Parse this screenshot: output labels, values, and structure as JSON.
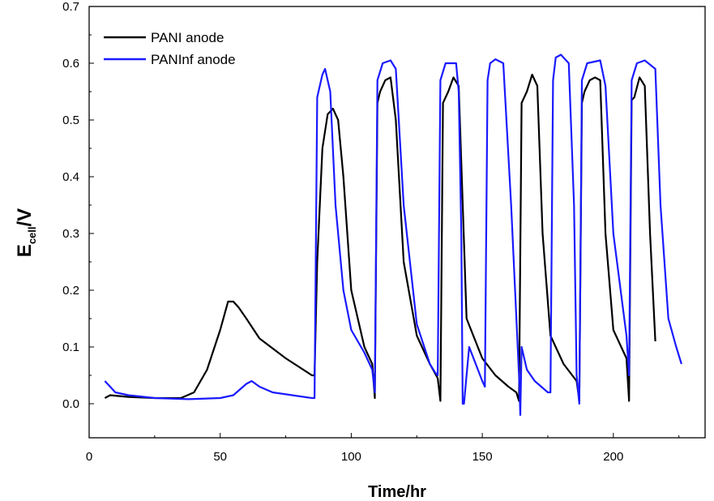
{
  "chart_data": {
    "type": "line",
    "xlabel": "Time/hr",
    "ylabel_main": "E",
    "ylabel_sub": "cell",
    "ylabel_tail": "/V",
    "xlim": [
      0,
      235
    ],
    "ylim": [
      -0.06,
      0.7
    ],
    "xticks": [
      0,
      50,
      100,
      150,
      200
    ],
    "yticks": [
      "0.0",
      "0.1",
      "0.2",
      "0.3",
      "0.4",
      "0.5",
      "0.6",
      "0.7"
    ],
    "legend_placement": "top-left",
    "series": [
      {
        "name": "PANI anode",
        "color": "#000000",
        "x": [
          6,
          8,
          15,
          25,
          35,
          40,
          45,
          50,
          53,
          55,
          57,
          60,
          65,
          75,
          85,
          86,
          87,
          89,
          91,
          93,
          95,
          97,
          100,
          105,
          108,
          109,
          110,
          111,
          113,
          115,
          117,
          120,
          125,
          130,
          133,
          134,
          135,
          137,
          139,
          141,
          144,
          150,
          155,
          160,
          163,
          164,
          165,
          167,
          169,
          171,
          173,
          176,
          181,
          186,
          187,
          188,
          189,
          191,
          193,
          195,
          197,
          200,
          205,
          206,
          207,
          208,
          210,
          212,
          214,
          216
        ],
        "y": [
          0.01,
          0.015,
          0.012,
          0.01,
          0.01,
          0.02,
          0.06,
          0.13,
          0.18,
          0.18,
          0.17,
          0.15,
          0.115,
          0.08,
          0.05,
          0.05,
          0.25,
          0.45,
          0.51,
          0.52,
          0.5,
          0.4,
          0.2,
          0.1,
          0.07,
          0.01,
          0.53,
          0.55,
          0.57,
          0.575,
          0.5,
          0.25,
          0.12,
          0.07,
          0.045,
          0.005,
          0.53,
          0.55,
          0.575,
          0.56,
          0.15,
          0.08,
          0.05,
          0.03,
          0.02,
          0.005,
          0.53,
          0.55,
          0.58,
          0.56,
          0.3,
          0.12,
          0.07,
          0.04,
          0.005,
          0.53,
          0.55,
          0.57,
          0.575,
          0.57,
          0.3,
          0.13,
          0.08,
          0.005,
          0.535,
          0.54,
          0.575,
          0.56,
          0.3,
          0.11
        ]
      },
      {
        "name": "PANInf anode",
        "color": "#1a1aff",
        "x": [
          6,
          8,
          10,
          15,
          25,
          38,
          50,
          55,
          60,
          62,
          65,
          70,
          85,
          86,
          87,
          89,
          90,
          92,
          94,
          97,
          100,
          105,
          108,
          109,
          110,
          112,
          115,
          117,
          120,
          125,
          130,
          132,
          133,
          134,
          136,
          140,
          141,
          142,
          142.5,
          143,
          145,
          150,
          151,
          152,
          153,
          155,
          158,
          161,
          164,
          164.5,
          165,
          167,
          170,
          175,
          176,
          177,
          178,
          180,
          183,
          185,
          186,
          187,
          188,
          190,
          195,
          197,
          200,
          205,
          206,
          207,
          209,
          212,
          216,
          218,
          221,
          224,
          226
        ],
        "y": [
          0.04,
          0.03,
          0.02,
          0.015,
          0.01,
          0.008,
          0.01,
          0.015,
          0.035,
          0.04,
          0.03,
          0.02,
          0.01,
          0.01,
          0.54,
          0.58,
          0.59,
          0.55,
          0.35,
          0.2,
          0.13,
          0.09,
          0.06,
          0.02,
          0.57,
          0.6,
          0.605,
          0.59,
          0.35,
          0.14,
          0.07,
          0.055,
          0.05,
          0.57,
          0.6,
          0.6,
          0.55,
          0.3,
          0.0,
          0.0,
          0.1,
          0.04,
          0.03,
          0.57,
          0.6,
          0.607,
          0.6,
          0.35,
          0.05,
          -0.02,
          0.1,
          0.06,
          0.04,
          0.02,
          0.02,
          0.57,
          0.61,
          0.615,
          0.6,
          0.35,
          0.05,
          0.0,
          0.57,
          0.6,
          0.605,
          0.56,
          0.3,
          0.12,
          0.05,
          0.57,
          0.6,
          0.605,
          0.59,
          0.35,
          0.15,
          0.1,
          0.07
        ]
      }
    ]
  }
}
